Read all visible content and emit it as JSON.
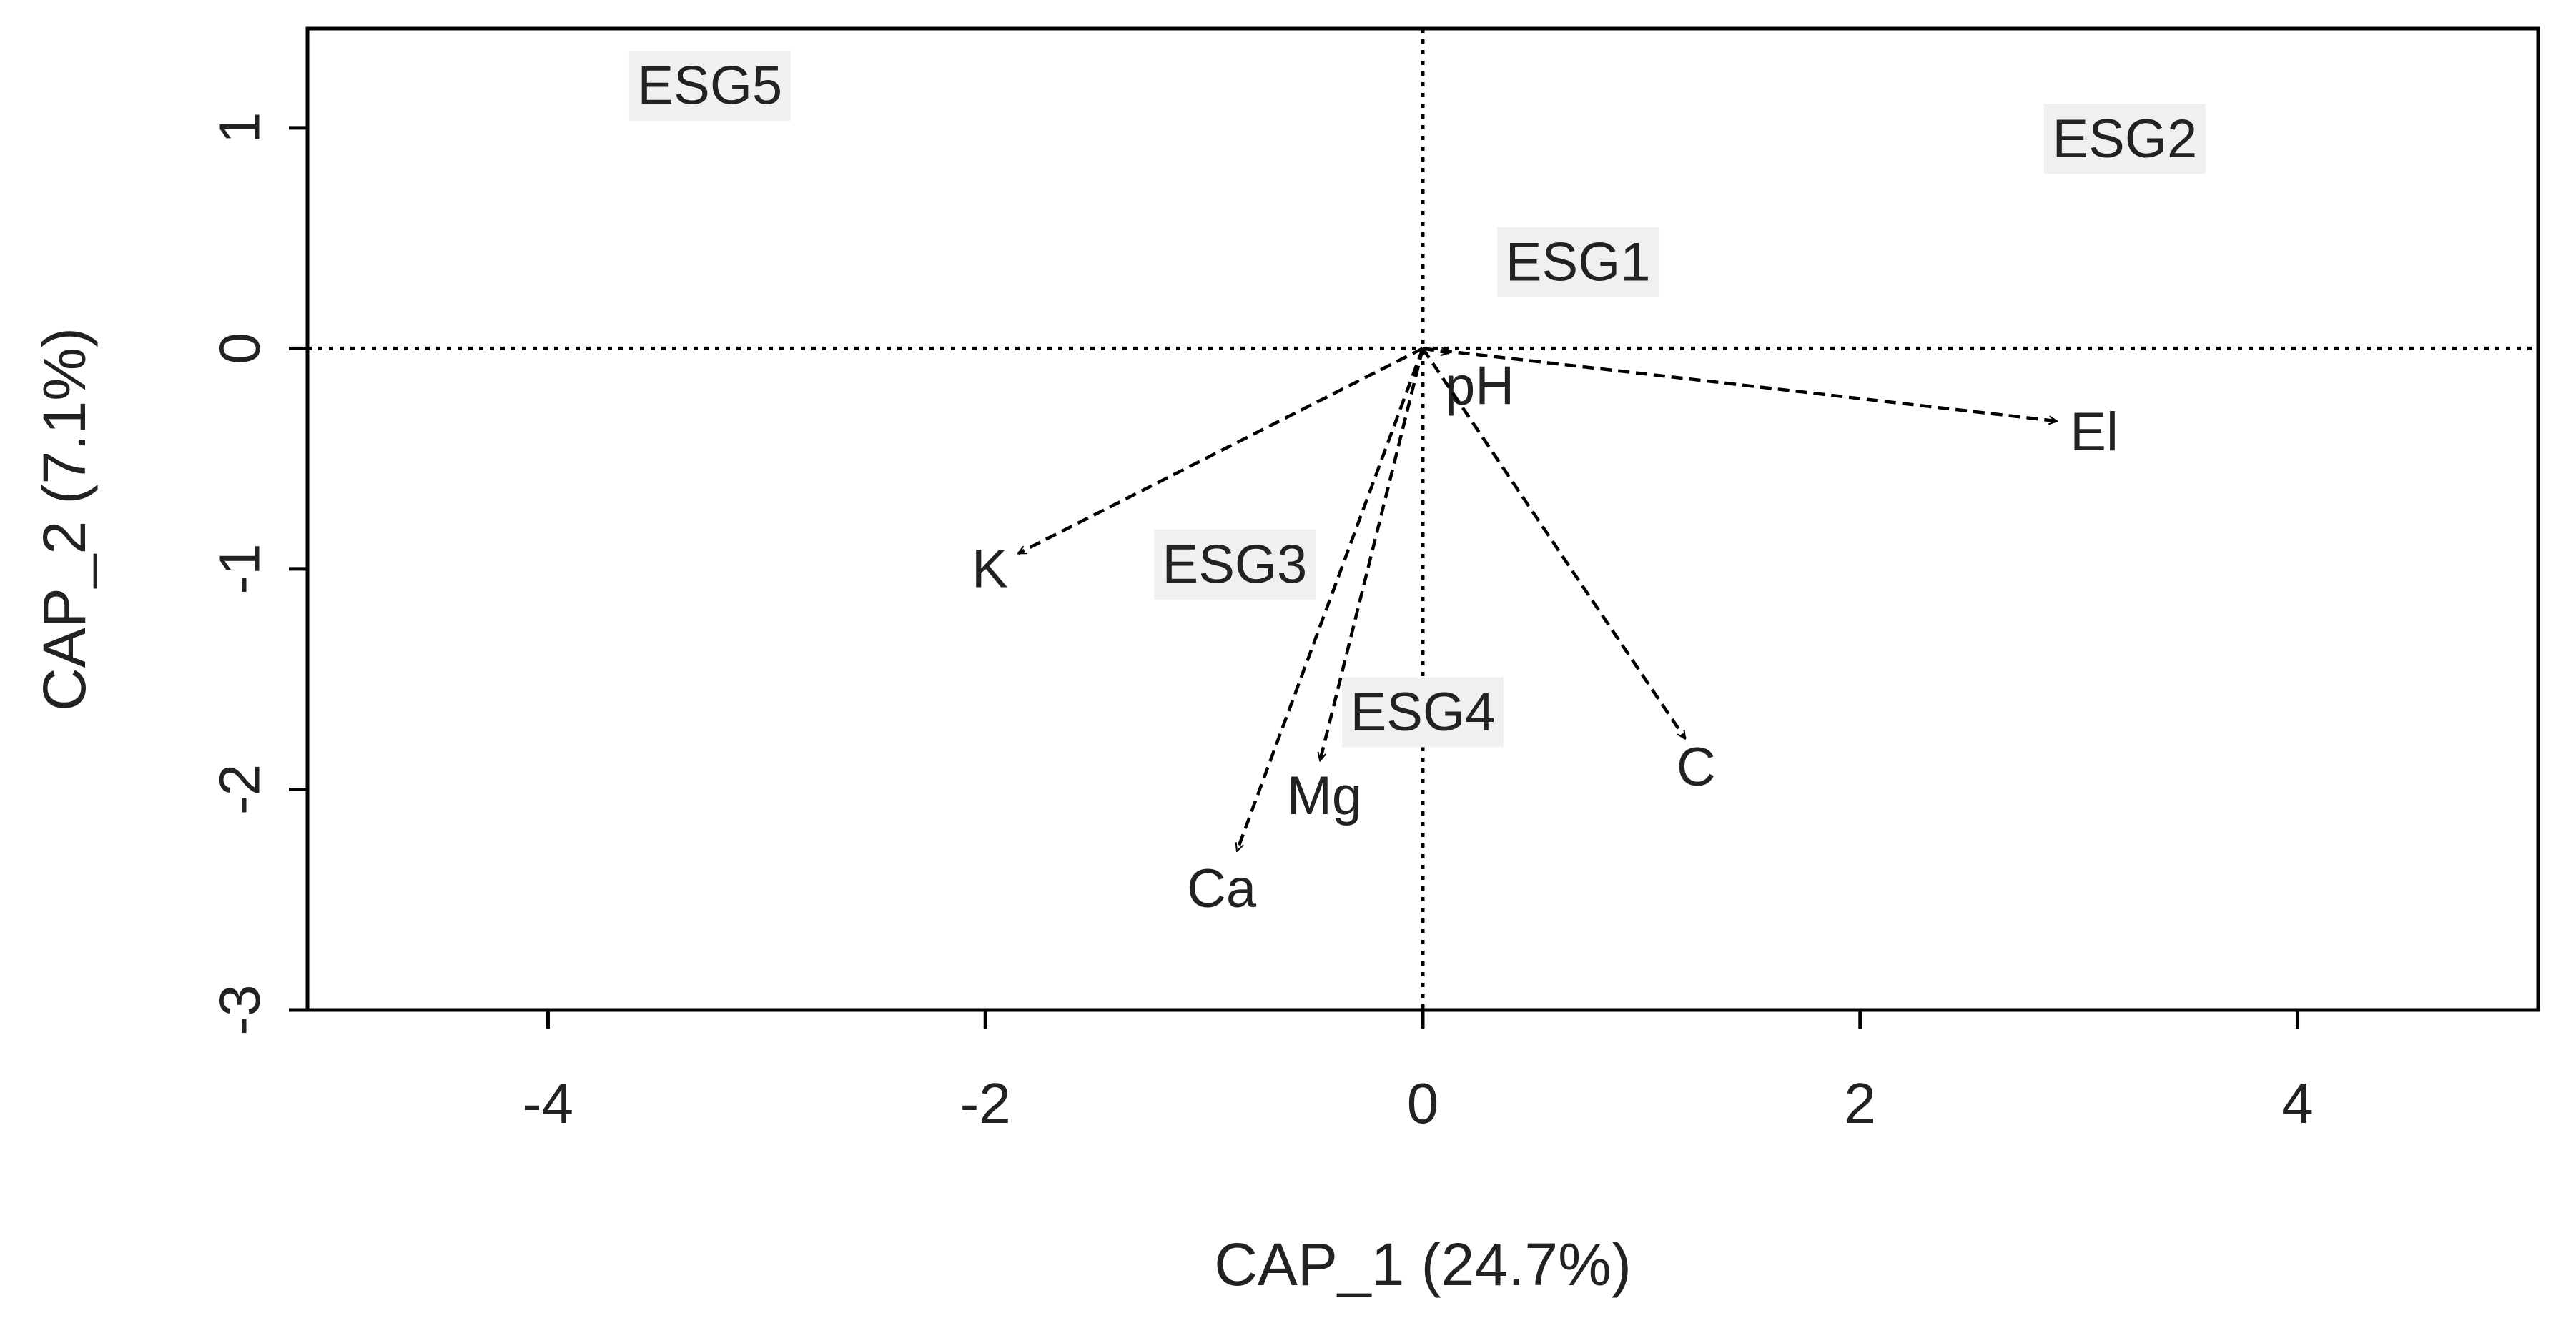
{
  "chart_data": {
    "type": "scatter",
    "title": "",
    "xlabel": "CAP_1 (24.7%)",
    "ylabel": "CAP_2 (7.1%)",
    "xlim": [
      -5.1,
      5.1
    ],
    "ylim": [
      -3.0,
      1.45
    ],
    "xticks": [
      {
        "value": -4,
        "label": "-4"
      },
      {
        "value": -2,
        "label": "-2"
      },
      {
        "value": 0,
        "label": "0"
      },
      {
        "value": 2,
        "label": "2"
      },
      {
        "value": 4,
        "label": "4"
      }
    ],
    "yticks": [
      {
        "value": -3,
        "label": "-3"
      },
      {
        "value": -2,
        "label": "-2"
      },
      {
        "value": -1,
        "label": "-1"
      },
      {
        "value": 0,
        "label": "0"
      },
      {
        "value": 1,
        "label": "1"
      }
    ],
    "reference_lines": {
      "x": 0,
      "y": 0,
      "style": "dotted"
    },
    "vectors": [
      {
        "name": "pH",
        "x": 0.12,
        "y": -0.02,
        "label_x": 0.26,
        "label_y": -0.17
      },
      {
        "name": "El",
        "x": 2.9,
        "y": -0.33,
        "label_x": 3.07,
        "label_y": -0.38
      },
      {
        "name": "K",
        "x": -1.85,
        "y": -0.93,
        "label_x": -1.98,
        "label_y": -1.0
      },
      {
        "name": "Ca",
        "x": -0.85,
        "y": -2.28,
        "label_x": -0.92,
        "label_y": -2.45
      },
      {
        "name": "Mg",
        "x": -0.47,
        "y": -1.87,
        "label_x": -0.45,
        "label_y": -2.03
      },
      {
        "name": "C",
        "x": 1.2,
        "y": -1.77,
        "label_x": 1.25,
        "label_y": -1.9
      }
    ],
    "groups": [
      {
        "name": "ESG1",
        "x": 0.71,
        "y": 0.39
      },
      {
        "name": "ESG2",
        "x": 3.21,
        "y": 0.95
      },
      {
        "name": "ESG3",
        "x": -0.86,
        "y": -0.98
      },
      {
        "name": "ESG4",
        "x": 0.0,
        "y": -1.65
      },
      {
        "name": "ESG5",
        "x": -3.26,
        "y": 1.19
      }
    ],
    "colors": {
      "axis": "#000000",
      "text": "#222222",
      "vector": "#000000",
      "group_label_bg": "#f0f0f0"
    }
  }
}
